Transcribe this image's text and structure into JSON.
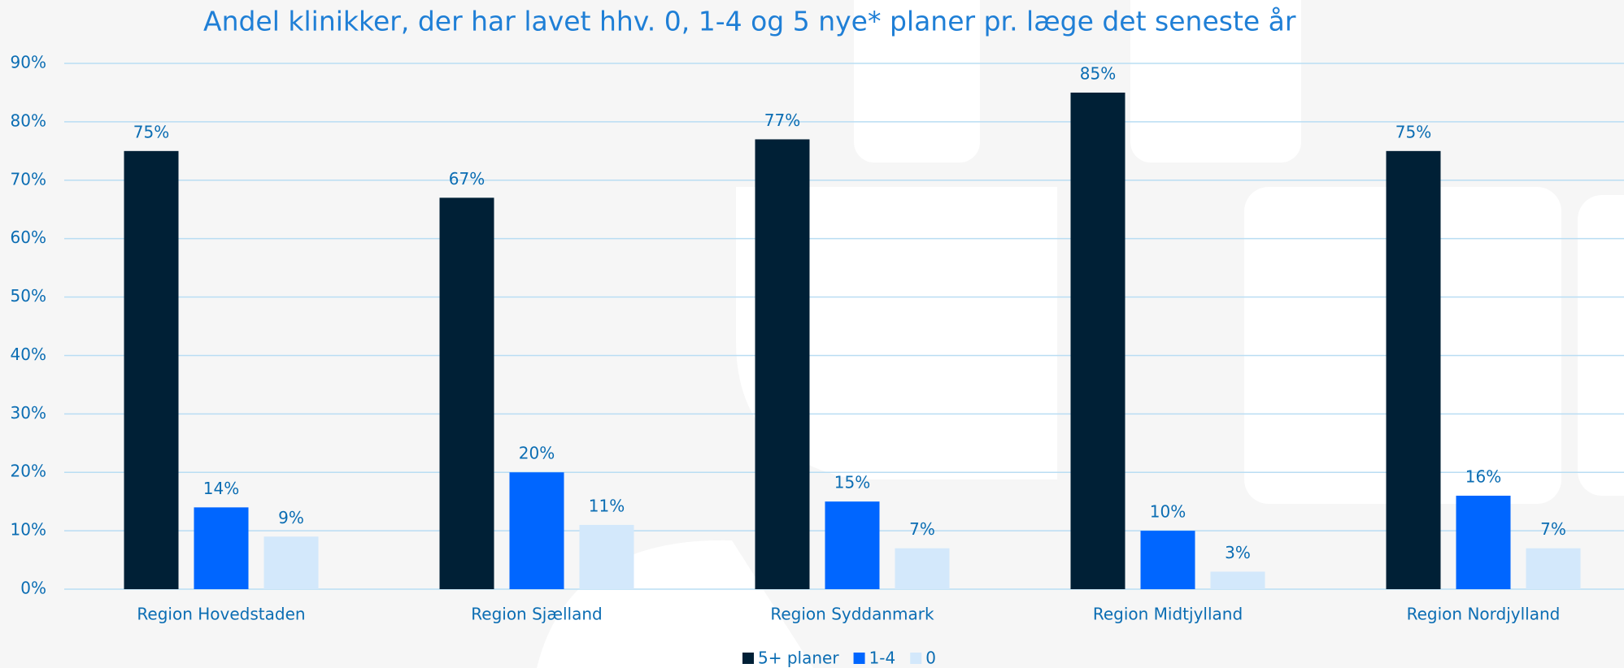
{
  "chart_data": {
    "type": "bar",
    "title": "Andel klinikker, der har lavet hhv. 0, 1-4 og 5 nye* planer pr. læge det seneste år",
    "categories": [
      "Region Hovedstaden",
      "Region Sjælland",
      "Region Syddanmark",
      "Region Midtjylland",
      "Region Nordjylland"
    ],
    "series": [
      {
        "name": "5+ planer",
        "color": "#002036",
        "values": [
          75,
          67,
          77,
          85,
          75
        ],
        "value_labels": [
          "75%",
          "67%",
          "77%",
          "85%",
          "75%"
        ]
      },
      {
        "name": "1-4",
        "color": "#0066ff",
        "values": [
          14,
          20,
          15,
          10,
          16
        ],
        "value_labels": [
          "14%",
          "20%",
          "15%",
          "10%",
          "16%"
        ]
      },
      {
        "name": "0",
        "color": "#d3e8fb",
        "values": [
          9,
          11,
          7,
          3,
          7
        ],
        "value_labels": [
          "9%",
          "11%",
          "7%",
          "3%",
          "7%"
        ]
      }
    ],
    "ylim": [
      0,
      90
    ],
    "yticks": [
      {
        "value": 0,
        "label": "0%"
      },
      {
        "value": 10,
        "label": "10%"
      },
      {
        "value": 20,
        "label": "20%"
      },
      {
        "value": 30,
        "label": "30%"
      },
      {
        "value": 40,
        "label": "40%"
      },
      {
        "value": 50,
        "label": "50%"
      },
      {
        "value": 60,
        "label": "60%"
      },
      {
        "value": 70,
        "label": "70%"
      },
      {
        "value": 80,
        "label": "80%"
      },
      {
        "value": 90,
        "label": "90%"
      }
    ],
    "grid": true
  }
}
